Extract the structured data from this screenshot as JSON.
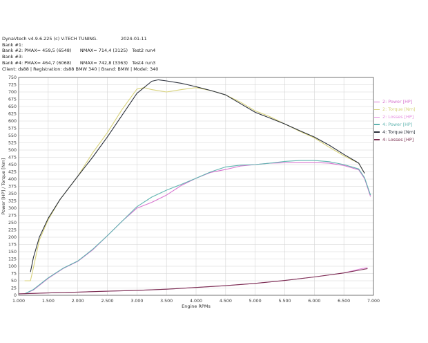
{
  "header": {
    "line1": "DynaVtech v4.9.6.225 (c) V-TECH TUNING.",
    "date": "2024-01-11",
    "line2": "Bank #1:",
    "line3": "Bank #2: PMAX= 459,5 (6548)      NMAX= 714,4 (3125)   Test2 run4",
    "line4": "Bank #3:",
    "line5": "Bank #4: PMAX= 464,7 (6068)      NMAX= 742,8 (3363)   Test4 run3",
    "line6": "Client: ds88 | Registration: ds88 BMW 340 | Brand: BMW | Model: 340"
  },
  "legend": [
    {
      "label": "2: Power [HP]",
      "color": "#d774cf"
    },
    {
      "label": "2: Torque [Nm]",
      "color": "#d8d27a"
    },
    {
      "label": "2: Losses [HP]",
      "color": "#e58ee0"
    },
    {
      "label": "4: Power [HP]",
      "color": "#5fb4b0"
    },
    {
      "label": "4: Torque [Nm]",
      "color": "#2a2f3a"
    },
    {
      "label": "4: Losses [HP]",
      "color": "#7a3050"
    }
  ],
  "chart_data": {
    "type": "line",
    "xlabel": "Engine RPMs",
    "ylabel": "Power [HP] / Torque [Nm]",
    "xlim": [
      1000,
      7000
    ],
    "ylim": [
      0,
      750
    ],
    "grid": true,
    "legend_placement": "right",
    "x_ticks": [
      "1.000",
      "1.500",
      "2.000",
      "2.500",
      "3.000",
      "3.500",
      "4.000",
      "4.500",
      "5.000",
      "5.500",
      "6.000",
      "6.500",
      "7.000"
    ],
    "y_ticks": [
      "0",
      "25",
      "50",
      "75",
      "100",
      "125",
      "150",
      "175",
      "200",
      "225",
      "250",
      "275",
      "300",
      "325",
      "350",
      "375",
      "400",
      "425",
      "450",
      "475",
      "500",
      "525",
      "550",
      "575",
      "600",
      "625",
      "650",
      "675",
      "700",
      "725",
      "750"
    ],
    "series": [
      {
        "name": "2: Power [HP]",
        "color": "#d774cf",
        "x": [
          1100,
          1250,
          1500,
          1750,
          2000,
          2250,
          2500,
          2750,
          3000,
          3250,
          3500,
          3750,
          4000,
          4250,
          4500,
          4750,
          5000,
          5250,
          5500,
          5750,
          6000,
          6250,
          6500,
          6750,
          6850,
          6950
        ],
        "y": [
          5,
          18,
          58,
          92,
          117,
          156,
          205,
          255,
          300,
          320,
          345,
          378,
          403,
          423,
          433,
          445,
          450,
          455,
          456,
          457,
          457,
          455,
          447,
          432,
          402,
          340
        ]
      },
      {
        "name": "2: Torque [Nm]",
        "color": "#d8d27a",
        "x": [
          1100,
          1200,
          1250,
          1350,
          1500,
          1700,
          2000,
          2250,
          2500,
          2750,
          3000,
          3125,
          3250,
          3500,
          3750,
          4000,
          4250,
          4500,
          4750,
          5000,
          5250,
          5500,
          5750,
          6000,
          6250,
          6500,
          6750,
          6850
        ],
        "y": [
          50,
          50,
          95,
          190,
          260,
          330,
          410,
          490,
          560,
          640,
          710,
          715,
          708,
          700,
          708,
          715,
          705,
          690,
          665,
          635,
          615,
          590,
          565,
          542,
          510,
          480,
          455,
          420
        ]
      },
      {
        "name": "2: Losses [HP]",
        "color": "#e58ee0",
        "x": [
          1000,
          1500,
          2000,
          2500,
          3000,
          3500,
          4000,
          4500,
          5000,
          5500,
          6000,
          6500,
          6800,
          6900
        ],
        "y": [
          5,
          8,
          11,
          14,
          17,
          21,
          27,
          33,
          41,
          51,
          63,
          77,
          92,
          95
        ]
      },
      {
        "name": "4: Power [HP]",
        "color": "#5fb4b0",
        "x": [
          1100,
          1250,
          1500,
          1750,
          2000,
          2250,
          2500,
          2750,
          3000,
          3250,
          3500,
          3750,
          4000,
          4250,
          4500,
          4750,
          5000,
          5250,
          5500,
          5750,
          6000,
          6250,
          6500,
          6750,
          6850,
          6950
        ],
        "y": [
          5,
          20,
          60,
          93,
          118,
          158,
          205,
          255,
          305,
          338,
          362,
          382,
          403,
          425,
          442,
          448,
          450,
          455,
          461,
          464,
          464,
          460,
          450,
          435,
          405,
          345
        ]
      },
      {
        "name": "4: Torque [Nm]",
        "color": "#2a2f3a",
        "x": [
          1200,
          1250,
          1350,
          1500,
          1700,
          2000,
          2250,
          2500,
          2750,
          3000,
          3250,
          3363,
          3500,
          3750,
          4000,
          4250,
          4500,
          4750,
          5000,
          5250,
          5500,
          5750,
          6000,
          6250,
          6500,
          6750,
          6850
        ],
        "y": [
          80,
          130,
          200,
          265,
          330,
          410,
          475,
          545,
          620,
          695,
          737,
          742,
          738,
          730,
          718,
          705,
          690,
          660,
          630,
          610,
          590,
          567,
          545,
          517,
          485,
          455,
          420
        ]
      },
      {
        "name": "4: Losses [HP]",
        "color": "#7a3050",
        "x": [
          1000,
          1500,
          2000,
          2500,
          3000,
          3500,
          4000,
          4500,
          5000,
          5500,
          6000,
          6500,
          6800,
          6900
        ],
        "y": [
          5,
          8,
          11,
          14,
          17,
          21,
          27,
          33,
          41,
          51,
          63,
          77,
          88,
          92
        ]
      }
    ]
  }
}
